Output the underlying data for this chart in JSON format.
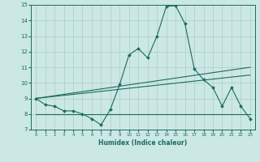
{
  "xlabel": "Humidex (Indice chaleur)",
  "background_color": "#cce8e4",
  "grid_color": "#aaccca",
  "line_color": "#1a6b60",
  "xlim": [
    -0.5,
    23.5
  ],
  "ylim": [
    7,
    15
  ],
  "xticks": [
    0,
    1,
    2,
    3,
    4,
    5,
    6,
    7,
    8,
    9,
    10,
    11,
    12,
    13,
    14,
    15,
    16,
    17,
    18,
    19,
    20,
    21,
    22,
    23
  ],
  "yticks": [
    7,
    8,
    9,
    10,
    11,
    12,
    13,
    14,
    15
  ],
  "main_x": [
    0,
    1,
    2,
    3,
    4,
    5,
    6,
    7,
    8,
    9,
    10,
    11,
    12,
    13,
    14,
    15,
    16,
    17,
    18,
    19,
    20,
    21,
    22,
    23
  ],
  "main_y": [
    9.0,
    8.6,
    8.5,
    8.2,
    8.2,
    8.0,
    7.7,
    7.3,
    8.3,
    9.9,
    11.8,
    12.2,
    11.6,
    13.0,
    14.9,
    14.95,
    13.8,
    10.9,
    10.2,
    9.7,
    8.5,
    9.7,
    8.5,
    7.7
  ],
  "line1_x": [
    0,
    23
  ],
  "line1_y": [
    9.0,
    11.0
  ],
  "line2_x": [
    0,
    23
  ],
  "line2_y": [
    9.0,
    10.5
  ],
  "line3_x": [
    0,
    23
  ],
  "line3_y": [
    8.0,
    8.0
  ]
}
